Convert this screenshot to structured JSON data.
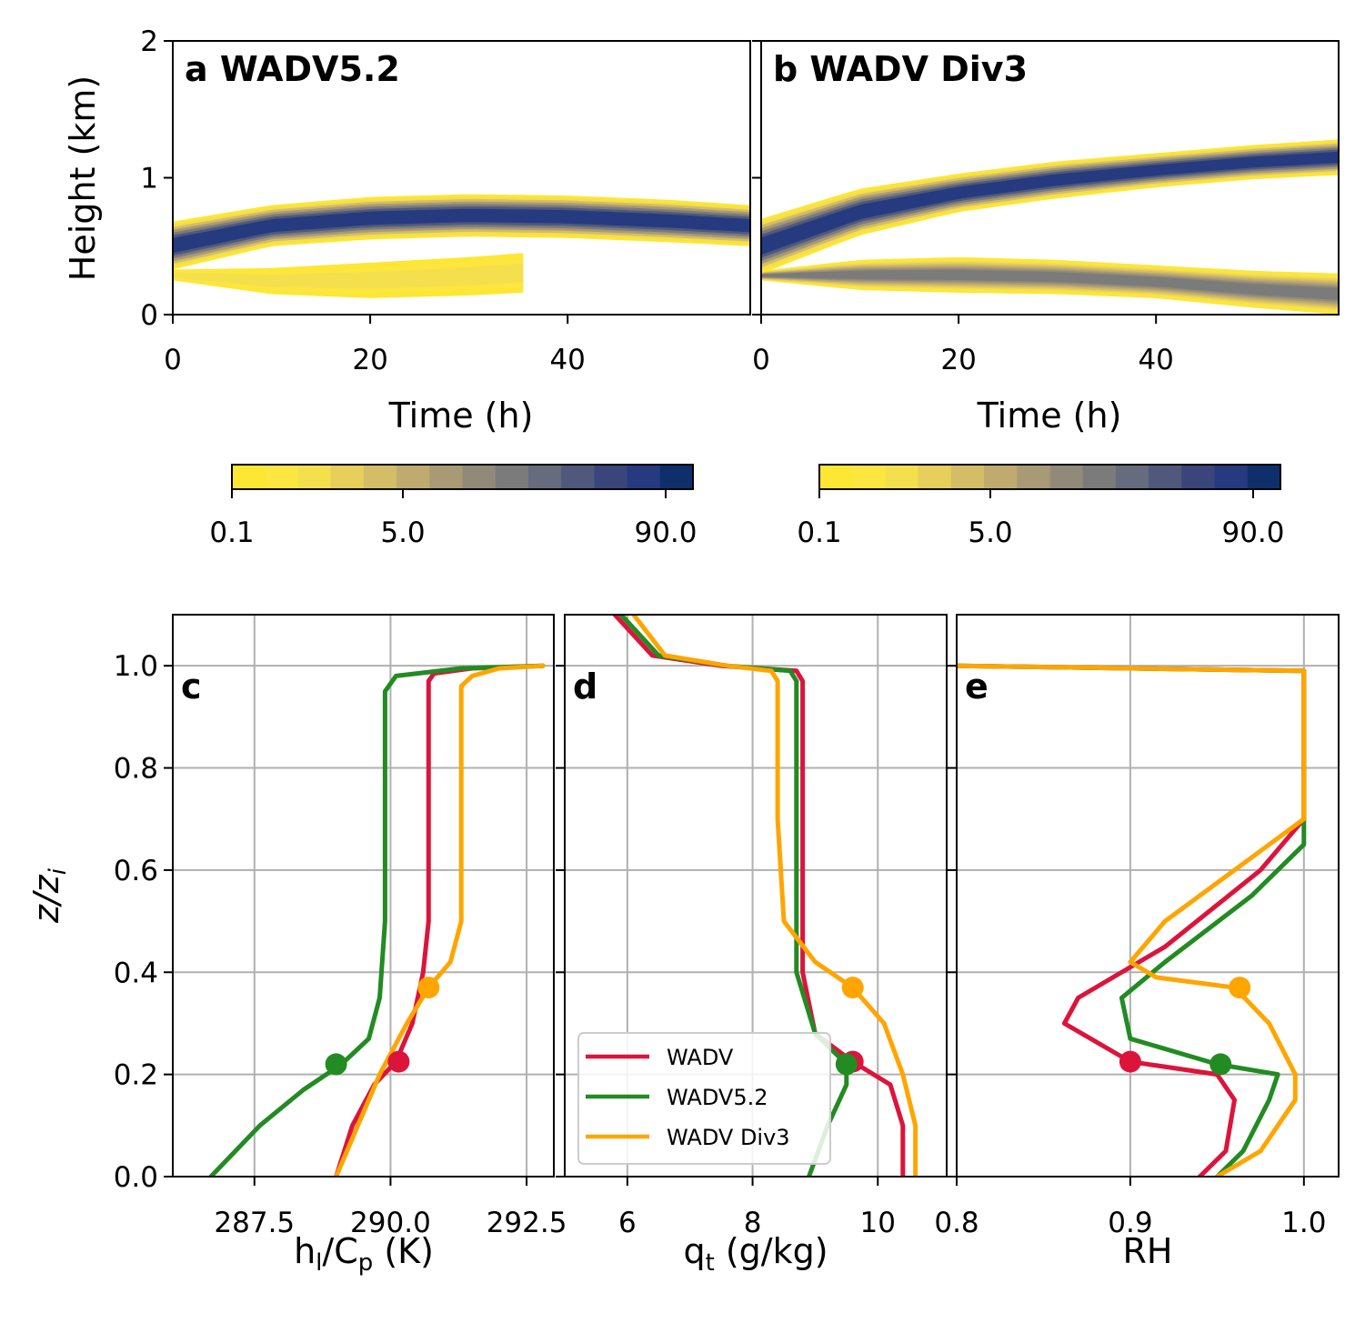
{
  "panels_top": [
    {
      "title": "a WADV5.2",
      "xlabel": "Time (h)",
      "ylabel": "Height (km)",
      "xlim": [
        0,
        58.5
      ],
      "ylim": [
        0,
        2
      ],
      "xticks": [
        "0",
        "20",
        "40"
      ],
      "yticks": [
        "0",
        "1",
        "2"
      ],
      "colorbar_ticks": [
        "0.1",
        "5.0",
        "90.0"
      ]
    },
    {
      "title": "b WADV Div3",
      "xlabel": "Time (h)",
      "ylabel": "",
      "xlim": [
        0,
        58.5
      ],
      "ylim": [
        0,
        2
      ],
      "xticks": [
        "0",
        "20",
        "40"
      ],
      "yticks": [],
      "colorbar_ticks": [
        "0.1",
        "5.0",
        "90.0"
      ]
    }
  ],
  "colormap": [
    "#fde732",
    "#fce63f",
    "#f4df4c",
    "#e6cf5a",
    "#d3bd66",
    "#bfab70",
    "#a99a76",
    "#928a79",
    "#7b7b7b",
    "#666b7d",
    "#50597b",
    "#3a467b",
    "#263a80",
    "#0f2f6b"
  ],
  "panels_bottom": [
    {
      "label": "c",
      "xlabel_main": "h",
      "xlabel_sub1": "l",
      "xlabel_mid": "/C",
      "xlabel_sub2": "p",
      "xlabel_end": " (K)",
      "xticks": [
        "287.5",
        "290.0",
        "292.5"
      ]
    },
    {
      "label": "d",
      "xlabel_main": "q",
      "xlabel_sub1": "t",
      "xlabel_end": " (g/kg)",
      "xticks": [
        "6",
        "8",
        "10"
      ]
    },
    {
      "label": "e",
      "xlabel": "RH",
      "xticks": [
        "0.8",
        "0.9",
        "1.0"
      ]
    }
  ],
  "bottom_ylabel": "z/z",
  "bottom_ylabel_sub": "i",
  "bottom_yticks": [
    "0.0",
    "0.2",
    "0.4",
    "0.6",
    "0.8",
    "1.0"
  ],
  "legend": [
    "WADV",
    "WADV5.2",
    "WADV Div3"
  ],
  "series_colors": {
    "WADV": "#dc143c",
    "WADV5.2": "#228b22",
    "WADV Div3": "#ffa500"
  },
  "chart_data": [
    {
      "type": "heatmap",
      "title": "a WADV5.2",
      "xlabel": "Time (h)",
      "ylabel": "Height (km)",
      "xlim": [
        0,
        58.5
      ],
      "ylim": [
        0,
        2
      ],
      "colorbar": {
        "min": 0.1,
        "max": 90.0,
        "ticks": [
          0.1,
          5.0,
          90.0
        ]
      },
      "cloud_layer": {
        "t": [
          0,
          10,
          20,
          30,
          40,
          50,
          58.5
        ],
        "base_km": [
          0.33,
          0.5,
          0.55,
          0.57,
          0.56,
          0.53,
          0.5
        ],
        "top_km": [
          0.68,
          0.8,
          0.86,
          0.88,
          0.87,
          0.84,
          0.8
        ]
      },
      "lower_layer": {
        "t": [
          0,
          10,
          20,
          30,
          35.5
        ],
        "base_km": [
          0.25,
          0.15,
          0.12,
          0.14,
          0.16
        ],
        "top_km": [
          0.33,
          0.34,
          0.38,
          0.42,
          0.45
        ]
      }
    },
    {
      "type": "heatmap",
      "title": "b WADV Div3",
      "xlabel": "Time (h)",
      "ylabel": "",
      "xlim": [
        0,
        58.5
      ],
      "ylim": [
        0,
        2
      ],
      "colorbar": {
        "min": 0.1,
        "max": 90.0,
        "ticks": [
          0.1,
          5.0,
          90.0
        ]
      },
      "cloud_layer": {
        "t": [
          0,
          10,
          20,
          30,
          40,
          50,
          58.5
        ],
        "base_km": [
          0.3,
          0.58,
          0.75,
          0.85,
          0.93,
          0.99,
          1.02
        ],
        "top_km": [
          0.7,
          0.92,
          1.03,
          1.12,
          1.18,
          1.24,
          1.28
        ]
      },
      "lower_layer": {
        "t": [
          0,
          10,
          20,
          30,
          40,
          50,
          58.5
        ],
        "base_km": [
          0.25,
          0.18,
          0.16,
          0.15,
          0.12,
          0.05,
          0.0
        ],
        "top_km": [
          0.32,
          0.4,
          0.42,
          0.4,
          0.36,
          0.32,
          0.3
        ]
      }
    },
    {
      "type": "line",
      "xlabel": "hl/Cp (K)",
      "ylabel": "z/zi",
      "xlim": [
        286.0,
        293.0
      ],
      "ylim": [
        0,
        1.1
      ],
      "series": [
        {
          "name": "WADV",
          "x": [
            289.0,
            289.3,
            289.7,
            290.1,
            290.4,
            290.6,
            290.7,
            290.7,
            290.7,
            290.7,
            290.8,
            291.5,
            292.8
          ],
          "y": [
            0.0,
            0.1,
            0.18,
            0.225,
            0.3,
            0.4,
            0.5,
            0.7,
            0.9,
            0.97,
            0.985,
            0.995,
            1.0
          ],
          "marker": {
            "x": 290.15,
            "y": 0.225
          }
        },
        {
          "name": "WADV5.2",
          "x": [
            286.7,
            287.6,
            288.4,
            289.1,
            289.6,
            289.8,
            289.9,
            289.9,
            289.9,
            289.9,
            290.1,
            291.3,
            292.8
          ],
          "y": [
            0.0,
            0.1,
            0.17,
            0.22,
            0.27,
            0.35,
            0.5,
            0.7,
            0.9,
            0.95,
            0.98,
            0.995,
            1.0
          ],
          "marker": {
            "x": 289.0,
            "y": 0.22
          }
        },
        {
          "name": "WADV Div3",
          "x": [
            289.0,
            289.4,
            289.8,
            290.3,
            290.7,
            291.1,
            291.3,
            291.3,
            291.3,
            291.3,
            291.5,
            292.0,
            292.8
          ],
          "y": [
            0.0,
            0.1,
            0.2,
            0.3,
            0.37,
            0.42,
            0.5,
            0.7,
            0.9,
            0.96,
            0.98,
            0.995,
            1.0
          ],
          "marker": {
            "x": 290.7,
            "y": 0.37
          }
        }
      ]
    },
    {
      "type": "line",
      "xlabel": "qt (g/kg)",
      "ylabel": "",
      "xlim": [
        5.0,
        11.1
      ],
      "ylim": [
        0,
        1.1
      ],
      "series": [
        {
          "name": "WADV",
          "x": [
            10.4,
            10.4,
            10.2,
            9.6,
            9.0,
            8.8,
            8.8,
            8.8,
            8.8,
            8.7,
            7.5,
            6.4,
            5.8
          ],
          "y": [
            0.0,
            0.1,
            0.18,
            0.225,
            0.28,
            0.4,
            0.6,
            0.9,
            0.97,
            0.99,
            1.0,
            1.02,
            1.1
          ],
          "marker": {
            "x": 9.6,
            "y": 0.225
          }
        },
        {
          "name": "WADV5.2",
          "x": [
            8.9,
            9.2,
            9.5,
            9.5,
            9.0,
            8.7,
            8.7,
            8.7,
            8.7,
            8.6,
            7.6,
            6.5,
            5.9
          ],
          "y": [
            0.0,
            0.1,
            0.18,
            0.22,
            0.28,
            0.4,
            0.6,
            0.9,
            0.97,
            0.99,
            1.0,
            1.02,
            1.1
          ],
          "marker": {
            "x": 9.5,
            "y": 0.22
          }
        },
        {
          "name": "WADV Div3",
          "x": [
            10.6,
            10.6,
            10.4,
            10.1,
            9.6,
            9.0,
            8.5,
            8.4,
            8.4,
            8.4,
            8.3,
            7.6,
            6.6,
            6.1
          ],
          "y": [
            0.0,
            0.1,
            0.2,
            0.3,
            0.37,
            0.42,
            0.5,
            0.7,
            0.9,
            0.97,
            0.99,
            1.0,
            1.02,
            1.1
          ],
          "marker": {
            "x": 9.6,
            "y": 0.37
          }
        }
      ]
    },
    {
      "type": "line",
      "xlabel": "RH",
      "ylabel": "",
      "xlim": [
        0.8,
        1.02
      ],
      "ylim": [
        0,
        1.1
      ],
      "series": [
        {
          "name": "WADV",
          "x": [
            0.94,
            0.955,
            0.96,
            0.95,
            0.9,
            0.862,
            0.87,
            0.92,
            0.975,
            1.0,
            1.0,
            1.0,
            0.8
          ],
          "y": [
            0.0,
            0.05,
            0.15,
            0.2,
            0.225,
            0.3,
            0.35,
            0.45,
            0.6,
            0.7,
            0.9,
            0.99,
            1.0
          ],
          "marker": {
            "x": 0.9,
            "y": 0.225
          }
        },
        {
          "name": "WADV5.2",
          "x": [
            0.95,
            0.965,
            0.98,
            0.985,
            0.95,
            0.9,
            0.895,
            0.92,
            0.97,
            1.0,
            1.0,
            1.0,
            0.8
          ],
          "y": [
            0.0,
            0.05,
            0.15,
            0.2,
            0.22,
            0.27,
            0.35,
            0.42,
            0.55,
            0.65,
            0.9,
            0.99,
            1.0
          ],
          "marker": {
            "x": 0.952,
            "y": 0.22
          }
        },
        {
          "name": "WADV Div3",
          "x": [
            0.95,
            0.975,
            0.995,
            0.995,
            0.98,
            0.96,
            0.915,
            0.9,
            0.92,
            0.96,
            1.0,
            1.0,
            1.0,
            0.8
          ],
          "y": [
            0.0,
            0.05,
            0.15,
            0.2,
            0.3,
            0.37,
            0.39,
            0.42,
            0.5,
            0.6,
            0.7,
            0.9,
            0.99,
            1.0
          ],
          "marker": {
            "x": 0.963,
            "y": 0.37
          }
        }
      ]
    }
  ]
}
